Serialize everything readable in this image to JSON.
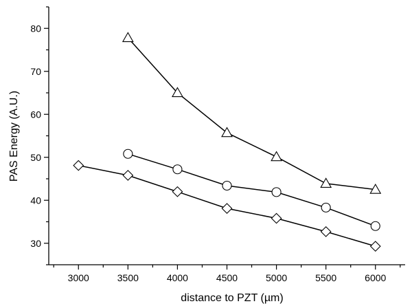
{
  "chart_data": {
    "type": "line",
    "title": "",
    "xlabel": "distance to PZT (µm)",
    "ylabel": "PAS Energy (A.U.)",
    "xlim": [
      2700,
      6300
    ],
    "ylim": [
      25,
      85
    ],
    "x_ticks": [
      3000,
      3500,
      4000,
      4500,
      5000,
      5500,
      6000
    ],
    "y_ticks": [
      30,
      40,
      50,
      60,
      70,
      80
    ],
    "x_minor_step": 250,
    "y_minor_step": 5,
    "grid": false,
    "legend": "none",
    "series": [
      {
        "marker": "triangle",
        "x": [
          3500,
          4000,
          4500,
          5000,
          5500,
          6000
        ],
        "values": [
          77.8,
          65.0,
          55.7,
          50.1,
          43.9,
          42.5
        ]
      },
      {
        "marker": "circle",
        "x": [
          3500,
          4000,
          4500,
          5000,
          5500,
          6000
        ],
        "values": [
          50.8,
          47.2,
          43.4,
          41.9,
          38.3,
          34.0
        ]
      },
      {
        "marker": "diamond",
        "x": [
          3000,
          3500,
          4000,
          4500,
          5000,
          5500,
          6000
        ],
        "values": [
          48.1,
          45.8,
          42.0,
          38.1,
          35.8,
          32.7,
          29.3
        ]
      }
    ]
  }
}
